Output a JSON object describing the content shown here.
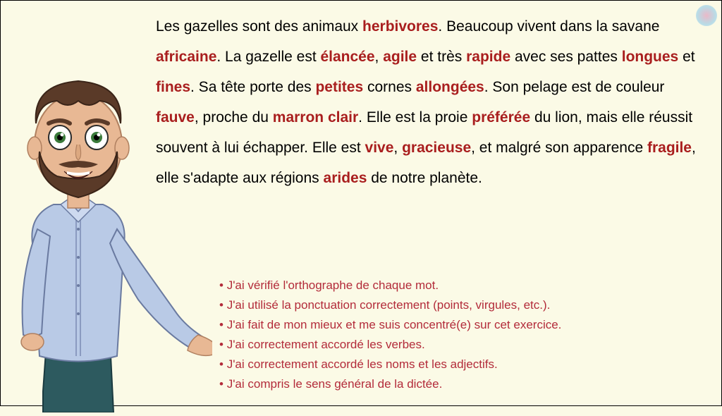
{
  "colors": {
    "background": "#fbfae6",
    "body_text": "#000000",
    "highlight": "#a91e1e",
    "checklist": "#b32b3a"
  },
  "typography": {
    "body_fontsize": 21,
    "body_lineheight": 2.05,
    "checklist_fontsize": 17,
    "checklist_lineheight": 1.65,
    "font_family": "Arial"
  },
  "paragraph": {
    "runs": [
      {
        "t": "Les gazelles sont des animaux ",
        "hl": false
      },
      {
        "t": "herbivores",
        "hl": true
      },
      {
        "t": ". Beaucoup vivent dans la savane ",
        "hl": false
      },
      {
        "t": "africaine",
        "hl": true
      },
      {
        "t": ". La gazelle est ",
        "hl": false
      },
      {
        "t": "élancée",
        "hl": true
      },
      {
        "t": ", ",
        "hl": false
      },
      {
        "t": "agile",
        "hl": true
      },
      {
        "t": " et très ",
        "hl": false
      },
      {
        "t": "rapide",
        "hl": true
      },
      {
        "t": " avec ses pattes ",
        "hl": false
      },
      {
        "t": "longues",
        "hl": true
      },
      {
        "t": " et ",
        "hl": false
      },
      {
        "t": "fines",
        "hl": true
      },
      {
        "t": ". Sa tête porte des ",
        "hl": false
      },
      {
        "t": "petites",
        "hl": true
      },
      {
        "t": " cornes ",
        "hl": false
      },
      {
        "t": "allongées",
        "hl": true
      },
      {
        "t": ". Son pelage est de couleur ",
        "hl": false
      },
      {
        "t": "fauve",
        "hl": true
      },
      {
        "t": ", proche du ",
        "hl": false
      },
      {
        "t": "marron clair",
        "hl": true
      },
      {
        "t": ". Elle est la proie ",
        "hl": false
      },
      {
        "t": "préférée",
        "hl": true
      },
      {
        "t": " du lion, mais elle réussit souvent à lui échapper. Elle est ",
        "hl": false
      },
      {
        "t": "vive",
        "hl": true
      },
      {
        "t": ", ",
        "hl": false
      },
      {
        "t": "gracieuse",
        "hl": true
      },
      {
        "t": ", et malgré son apparence ",
        "hl": false
      },
      {
        "t": "fragile",
        "hl": true
      },
      {
        "t": ", elle s'adapte aux régions ",
        "hl": false
      },
      {
        "t": "arides",
        "hl": true
      },
      {
        "t": " de notre planète.",
        "hl": false
      }
    ]
  },
  "checklist": {
    "items": [
      "J'ai vérifié l'orthographe de chaque mot.",
      "J'ai utilisé la ponctuation correctement (points, virgules, etc.).",
      "J'ai fait de mon mieux et me suis concentré(e) sur cet exercice.",
      "J'ai correctement accordé les verbes.",
      "J'ai correctement accordé les noms et les adjectifs.",
      "J'ai compris le sens général de la dictée."
    ]
  },
  "character": {
    "skin": "#e8b894",
    "hair": "#5a3a28",
    "beard": "#5a3a28",
    "shirt": "#b9cae6",
    "shirt_shadow": "#9cb0d4",
    "pants": "#2d5a5f",
    "eye_white": "#ffffff",
    "eye_iris": "#3a7a3a",
    "outline": "#2a2a2a"
  }
}
